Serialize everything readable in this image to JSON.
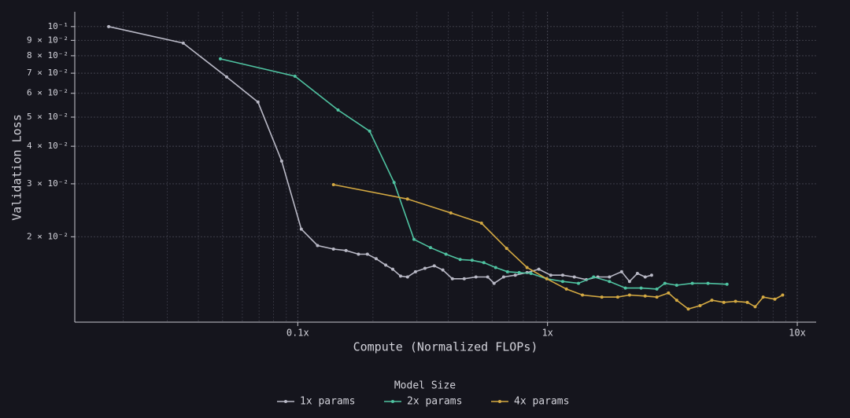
{
  "chart_data": {
    "type": "line",
    "x_label": "Compute (Normalized FLOPs)",
    "y_label": "Validation Loss",
    "xscale": "log",
    "yscale": "log",
    "grid": true,
    "legend": "bottom",
    "legend_title": "Model Size",
    "xlim": [
      0.0128,
      11.9
    ],
    "ylim": [
      0.0104,
      0.112
    ],
    "xticks": [
      {
        "value": 0.1,
        "label": "0.1x"
      },
      {
        "value": 1,
        "label": "1x"
      },
      {
        "value": 10,
        "label": "10x"
      }
    ],
    "xminorticks": [
      0.02,
      0.03,
      0.04,
      0.05,
      0.06,
      0.07,
      0.08,
      0.09,
      0.2,
      0.3,
      0.4,
      0.5,
      0.6,
      0.7,
      0.8,
      0.9,
      2,
      3,
      4,
      5,
      6,
      7,
      8,
      9
    ],
    "yticks": [
      {
        "value": 0.1,
        "label": "10⁻¹"
      },
      {
        "value": 0.09,
        "label": "9 × 10⁻²"
      },
      {
        "value": 0.08,
        "label": "8 × 10⁻²"
      },
      {
        "value": 0.07,
        "label": "7 × 10⁻²"
      },
      {
        "value": 0.06,
        "label": "6 × 10⁻²"
      },
      {
        "value": 0.05,
        "label": "5 × 10⁻²"
      },
      {
        "value": 0.04,
        "label": "4 × 10⁻²"
      },
      {
        "value": 0.03,
        "label": "3 × 10⁻²"
      },
      {
        "value": 0.02,
        "label": "2 × 10⁻²"
      }
    ],
    "series": [
      {
        "name": "1x params",
        "color": "#b9b9c6",
        "x": [
          0.0175,
          0.0348,
          0.0519,
          0.0693,
          0.0862,
          0.1033,
          0.12,
          0.139,
          0.156,
          0.175,
          0.19,
          0.206,
          0.225,
          0.24,
          0.258,
          0.275,
          0.296,
          0.323,
          0.352,
          0.381,
          0.416,
          0.464,
          0.517,
          0.576,
          0.611,
          0.667,
          0.743,
          0.828,
          0.923,
          1.03,
          1.15,
          1.28,
          1.43,
          1.59,
          1.77,
          1.98,
          2.13,
          2.29,
          2.46,
          2.61
        ],
        "values": [
          0.1,
          0.0881,
          0.068,
          0.0561,
          0.0357,
          0.0212,
          0.0187,
          0.0182,
          0.018,
          0.0175,
          0.0175,
          0.0169,
          0.0161,
          0.0156,
          0.0148,
          0.0147,
          0.0153,
          0.0157,
          0.016,
          0.0155,
          0.0145,
          0.0145,
          0.0147,
          0.0147,
          0.014,
          0.0147,
          0.0149,
          0.0152,
          0.0156,
          0.0149,
          0.0149,
          0.0147,
          0.0144,
          0.0147,
          0.0147,
          0.0153,
          0.0142,
          0.0151,
          0.0147,
          0.0149
        ]
      },
      {
        "name": "2x params",
        "color": "#4fc3a1",
        "x": [
          0.049,
          0.0975,
          0.145,
          0.194,
          0.243,
          0.292,
          0.34,
          0.392,
          0.447,
          0.499,
          0.556,
          0.62,
          0.691,
          0.77,
          0.859,
          0.993,
          1.15,
          1.33,
          1.53,
          1.77,
          2.05,
          2.37,
          2.74,
          2.95,
          3.29,
          3.8,
          4.39,
          5.23
        ],
        "values": [
          0.0781,
          0.0684,
          0.0528,
          0.0449,
          0.0303,
          0.0196,
          0.0184,
          0.0175,
          0.0168,
          0.0167,
          0.0164,
          0.0158,
          0.0153,
          0.0152,
          0.0151,
          0.0145,
          0.0142,
          0.014,
          0.0147,
          0.0142,
          0.0135,
          0.0135,
          0.0134,
          0.014,
          0.0138,
          0.014,
          0.014,
          0.0139
        ]
      },
      {
        "name": "4x params",
        "color": "#d4a942",
        "x": [
          0.139,
          0.275,
          0.41,
          0.544,
          0.686,
          0.828,
          0.993,
          1.19,
          1.38,
          1.65,
          1.91,
          2.13,
          2.46,
          2.74,
          3.05,
          3.29,
          3.66,
          4.08,
          4.55,
          5.08,
          5.66,
          6.31,
          6.78,
          7.3,
          8.13,
          8.74
        ],
        "values": [
          0.0298,
          0.0267,
          0.024,
          0.0222,
          0.0183,
          0.0158,
          0.0145,
          0.0134,
          0.0128,
          0.0126,
          0.0126,
          0.0128,
          0.0127,
          0.0126,
          0.013,
          0.0123,
          0.0115,
          0.0118,
          0.0123,
          0.0121,
          0.0122,
          0.0121,
          0.0117,
          0.0126,
          0.0124,
          0.0128
        ]
      }
    ]
  }
}
